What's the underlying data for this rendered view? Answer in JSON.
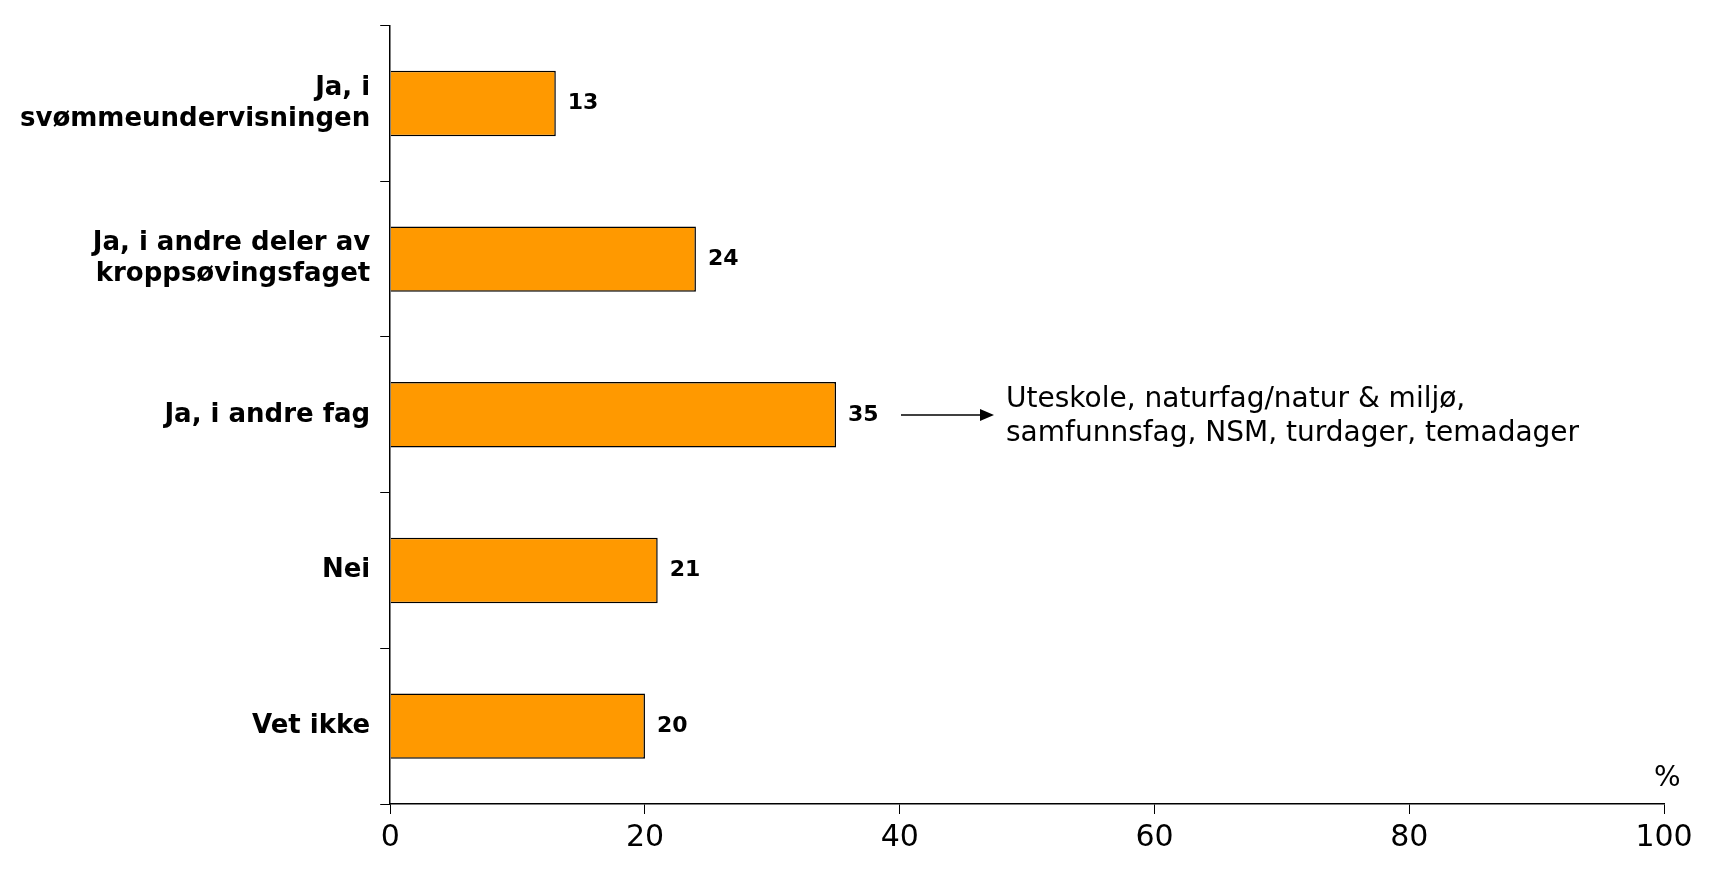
{
  "chart_data": {
    "type": "bar",
    "orientation": "horizontal",
    "categories": [
      "Ja, i svømmeundervisningen",
      "Ja, i andre deler av kroppsøvingsfaget",
      "Ja, i andre fag",
      "Nei",
      "Vet ikke"
    ],
    "values": [
      13,
      24,
      35,
      21,
      20
    ],
    "color": "#ff9900",
    "xlim": [
      0,
      100
    ],
    "xticks": [
      0,
      20,
      40,
      60,
      80,
      100
    ],
    "xlabel": "%",
    "data_labels": true,
    "grid": false,
    "legend": false,
    "annotations": [
      "Uteskole, naturfag/natur & miljø, samfunnsfag, NSM, turdager, temadager"
    ]
  }
}
